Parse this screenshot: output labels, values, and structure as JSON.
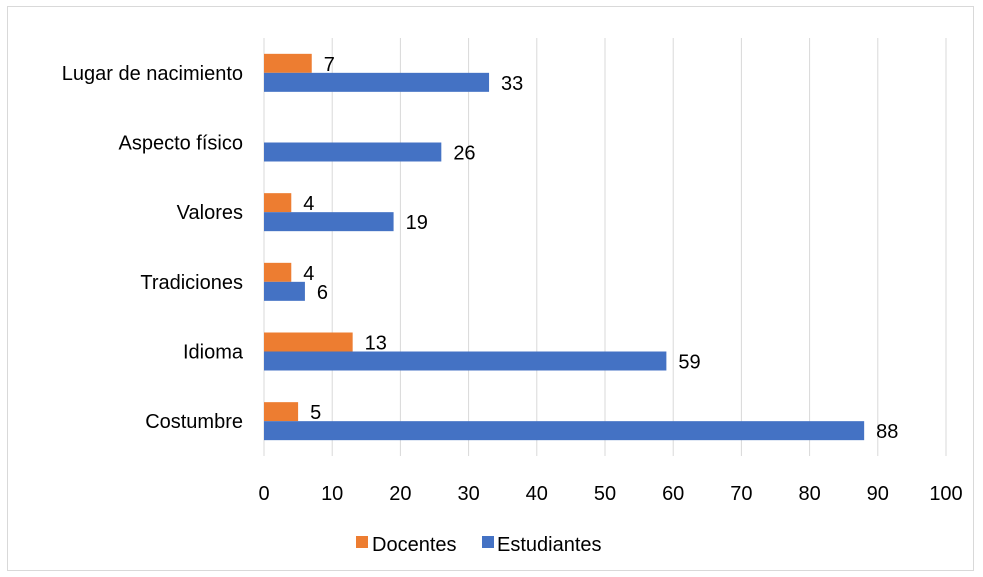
{
  "chart_data": {
    "type": "bar",
    "orientation": "horizontal",
    "categories": [
      "Costumbre",
      "Idioma",
      "Tradiciones",
      "Valores",
      "Aspecto físico",
      "Lugar de nacimiento"
    ],
    "series": [
      {
        "name": "Estudiantes",
        "color": "#4472c4",
        "values": [
          88,
          59,
          6,
          19,
          26,
          33
        ]
      },
      {
        "name": "Docentes",
        "color": "#ed7d31",
        "values": [
          5,
          13,
          4,
          4,
          null,
          7
        ]
      }
    ],
    "xlim": [
      0,
      100
    ],
    "xticks": [
      "0",
      "10",
      "20",
      "30",
      "40",
      "50",
      "60",
      "70",
      "80",
      "90",
      "100"
    ],
    "grid": "vertical",
    "legend": {
      "position": "bottom",
      "entries": [
        "Docentes",
        "Estudiantes"
      ]
    }
  }
}
